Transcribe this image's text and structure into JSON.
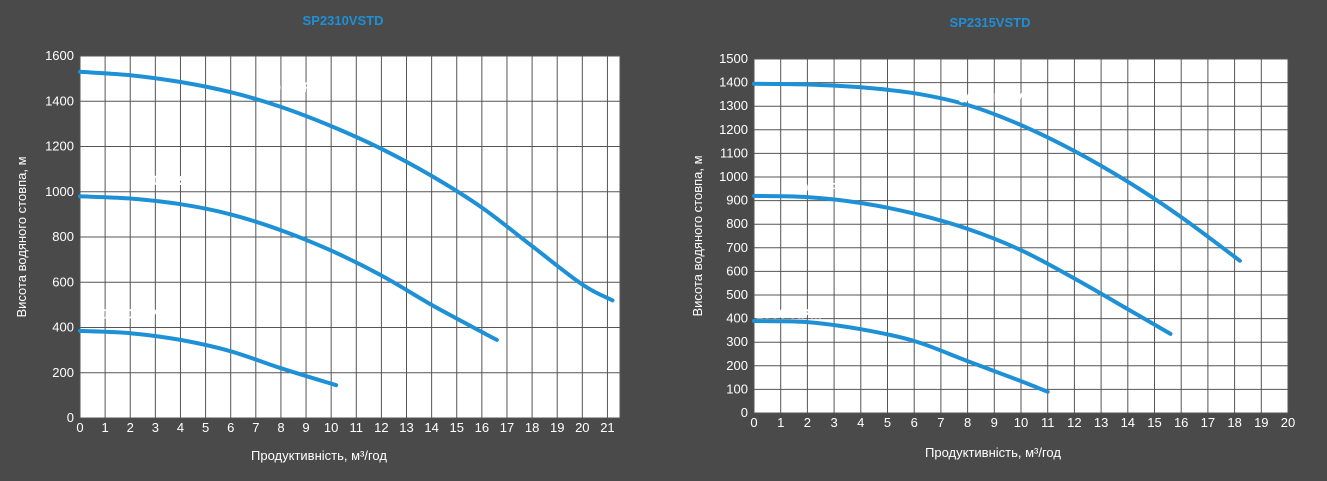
{
  "colors": {
    "background": "#4a4a4a",
    "plot_background": "#ffffff",
    "grid": "#555555",
    "curve": "#1e90d6",
    "title": "#1e90d6",
    "text": "#ffffff"
  },
  "chart_data": [
    {
      "type": "line",
      "title": "SP2310VSTD",
      "xlabel": "Продуктивність, м³/год",
      "ylabel": "Висота водяного стовпа, м",
      "xlim": [
        0,
        21.5
      ],
      "ylim": [
        0,
        1600
      ],
      "xticks": [
        0,
        1,
        2,
        3,
        4,
        5,
        6,
        7,
        8,
        9,
        10,
        11,
        12,
        13,
        14,
        15,
        16,
        17,
        18,
        19,
        20,
        21
      ],
      "yticks": [
        0,
        200,
        400,
        600,
        800,
        1000,
        1200,
        1400,
        1600
      ],
      "grid": true,
      "series": [
        {
          "name": "3000 RPM",
          "label_at": [
            8.4,
            1440
          ],
          "x": [
            0,
            2,
            4,
            6,
            8,
            10,
            12,
            14,
            16,
            18,
            20,
            21.2
          ],
          "y": [
            1530,
            1515,
            1485,
            1440,
            1375,
            1290,
            1190,
            1070,
            930,
            760,
            590,
            520
          ]
        },
        {
          "name": "2400 RPM",
          "label_at": [
            3.6,
            1030
          ],
          "x": [
            0,
            2,
            4,
            6,
            8,
            10,
            12,
            14,
            16,
            16.6
          ],
          "y": [
            980,
            970,
            945,
            900,
            830,
            740,
            630,
            500,
            380,
            345
          ]
        },
        {
          "name": "1500 RPM",
          "label_at": [
            2.2,
            440
          ],
          "x": [
            0,
            2,
            4,
            6,
            8,
            10.2
          ],
          "y": [
            385,
            375,
            345,
            295,
            220,
            145
          ]
        }
      ]
    },
    {
      "type": "line",
      "title": "SP2315VSTD",
      "xlabel": "Продуктивність, м³/год",
      "ylabel": "Висота водяного стовпа, м",
      "xlim": [
        0,
        20
      ],
      "ylim": [
        0,
        1500
      ],
      "xticks": [
        0,
        1,
        2,
        3,
        4,
        5,
        6,
        7,
        8,
        9,
        10,
        11,
        12,
        13,
        14,
        15,
        16,
        17,
        18,
        19,
        20
      ],
      "yticks": [
        0,
        100,
        200,
        300,
        400,
        500,
        600,
        700,
        800,
        900,
        1000,
        1100,
        1200,
        1300,
        1400,
        1500
      ],
      "grid": true,
      "series": [
        {
          "name": "3000 RPM",
          "label_at": [
            8.9,
            1315
          ],
          "x": [
            0,
            2,
            4,
            6,
            8,
            10,
            12,
            14,
            16,
            18.2
          ],
          "y": [
            1395,
            1392,
            1380,
            1355,
            1305,
            1220,
            1110,
            980,
            830,
            645
          ]
        },
        {
          "name": "2400 RPM",
          "label_at": [
            2.4,
            935
          ],
          "x": [
            0,
            2,
            4,
            6,
            8,
            10,
            12,
            14,
            15.6
          ],
          "y": [
            920,
            915,
            890,
            845,
            780,
            690,
            570,
            440,
            335
          ]
        },
        {
          "name": "1500 RPM",
          "label_at": [
            1.3,
            400
          ],
          "x": [
            0,
            2,
            4,
            6,
            8,
            10,
            11
          ],
          "y": [
            390,
            385,
            355,
            305,
            220,
            135,
            90
          ]
        }
      ]
    }
  ]
}
